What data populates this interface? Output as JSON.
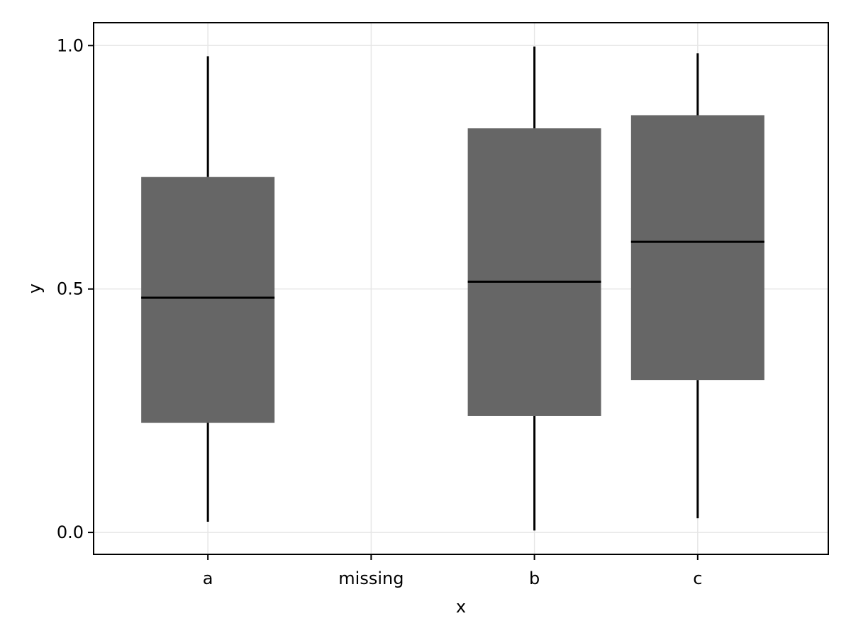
{
  "chart_data": {
    "type": "box",
    "title": "",
    "xlabel": "x",
    "ylabel": "y",
    "categories": [
      "a",
      "missing",
      "b",
      "c"
    ],
    "ylim": [
      -0.045,
      1.047
    ],
    "yticks": [
      0.0,
      0.5,
      1.0
    ],
    "ytick_labels": [
      "0.0",
      "0.5",
      "1.0"
    ],
    "grid": true,
    "colors": {
      "box_fill": "#666666",
      "median": "#000000",
      "whisker": "#000000",
      "grid": "#e6e6e6",
      "frame": "#000000"
    },
    "boxes": [
      {
        "category": "a",
        "whisker_low": 0.022,
        "q1": 0.225,
        "median": 0.482,
        "q3": 0.73,
        "whisker_high": 0.978
      },
      {
        "category": "b",
        "whisker_low": 0.004,
        "q1": 0.239,
        "median": 0.515,
        "q3": 0.83,
        "whisker_high": 0.998
      },
      {
        "category": "c",
        "whisker_low": 0.029,
        "q1": 0.313,
        "median": 0.597,
        "q3": 0.857,
        "whisker_high": 0.984
      }
    ]
  }
}
